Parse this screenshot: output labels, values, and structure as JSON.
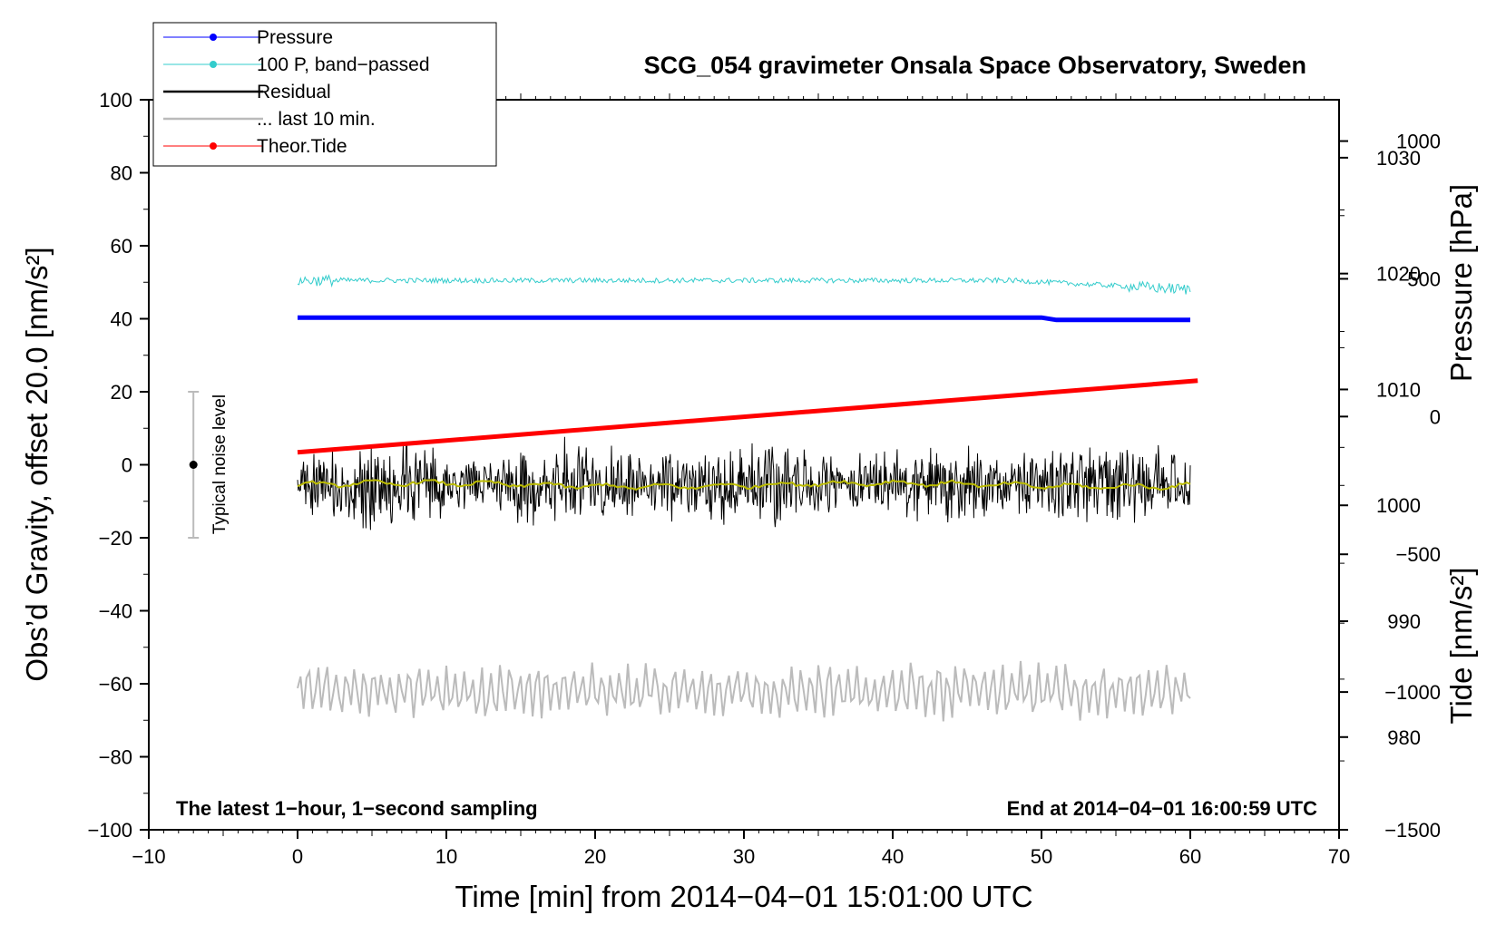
{
  "chart_data": {
    "type": "line",
    "title": "SCG_054 gravimeter Onsala Space Observatory, Sweden",
    "xlabel": "Time [min] from 2014−04−01 15:01:00 UTC",
    "ylabel_left": "Obs’d Gravity, offset 20.0 [nm/s²]",
    "ylabel_right_pressure": "Pressure [hPa]",
    "ylabel_right_tide": "Tide [nm/s²]",
    "xlim": [
      -10,
      70
    ],
    "ylim": [
      -100,
      100
    ],
    "pressure_axis": {
      "range": [
        972,
        1035
      ],
      "ticks": [
        980,
        990,
        1000,
        1010,
        1020,
        1030
      ]
    },
    "tide_axis": {
      "range": [
        -1500,
        1150
      ],
      "ticks": [
        -1500,
        -1000,
        -500,
        0,
        500,
        1000
      ]
    },
    "x_ticks": [
      -10,
      0,
      10,
      20,
      30,
      40,
      50,
      60,
      70
    ],
    "x_tick_labels": [
      "−10",
      "0",
      "10",
      "20",
      "30",
      "40",
      "50",
      "60",
      "70"
    ],
    "y_ticks": [
      -100,
      -80,
      -60,
      -40,
      -20,
      0,
      20,
      40,
      60,
      80,
      100
    ],
    "y_tick_labels": [
      "−100",
      "−80",
      "−60",
      "−40",
      "−20",
      "0",
      "20",
      "40",
      "60",
      "80",
      "100"
    ],
    "pressure_tick_labels": [
      "980",
      "990",
      "1000",
      "1010",
      "1020",
      "1030"
    ],
    "tide_tick_labels": [
      "−1500",
      "−1000",
      "−500",
      "0",
      "500",
      "1000"
    ],
    "legend": {
      "placement": "top-left",
      "entries": [
        {
          "label": "Pressure",
          "color": "#0000ff",
          "marker": true
        },
        {
          "label": "100 P, band−passed",
          "color": "#33cccc",
          "marker": true
        },
        {
          "label": "Residual",
          "color": "#000000",
          "marker": false
        },
        {
          "label": "... last 10 min.",
          "color": "#bbbbbb",
          "marker": false
        },
        {
          "label": "Theor.Tide",
          "color": "#ff0000",
          "marker": true
        }
      ]
    },
    "annotations": {
      "left": "The latest 1−hour, 1−second sampling",
      "right": "End at 2014−04−01 16:00:59 UTC",
      "noise_label": "Typical noise level",
      "noise_bar": {
        "x": -7,
        "center": 0,
        "low": -20,
        "high": 20
      }
    },
    "series": [
      {
        "name": "Pressure",
        "axis": "pressure",
        "color": "#0000ff",
        "x": [
          0,
          50,
          51,
          60
        ],
        "values": [
          1016.2,
          1016.2,
          1016.0,
          1016.0
        ]
      },
      {
        "name": "100 P, band−passed",
        "axis": "left",
        "color": "#33cccc",
        "x_range": [
          0,
          60
        ],
        "center": 50.5,
        "end_center": 48.0,
        "noise_amplitude": 1.0
      },
      {
        "name": "Residual",
        "axis": "left",
        "color": "#000000",
        "x_range": [
          0,
          60
        ],
        "center": -5.5,
        "min": -21,
        "max": 9
      },
      {
        "name": "Residual smoothed",
        "axis": "left",
        "color": "#bbbb00",
        "x_range": [
          0,
          60
        ],
        "center": -5.5,
        "noise_amplitude": 0.8
      },
      {
        "name": "... last 10 min.",
        "axis": "left",
        "color": "#bbbbbb",
        "x_range": [
          0,
          60
        ],
        "center": -62,
        "min": -72,
        "max": -51
      },
      {
        "name": "Theor.Tide",
        "axis": "tide",
        "color": "#ff0000",
        "x": [
          0,
          60.5
        ],
        "values": [
          -130,
          130
        ]
      }
    ]
  }
}
